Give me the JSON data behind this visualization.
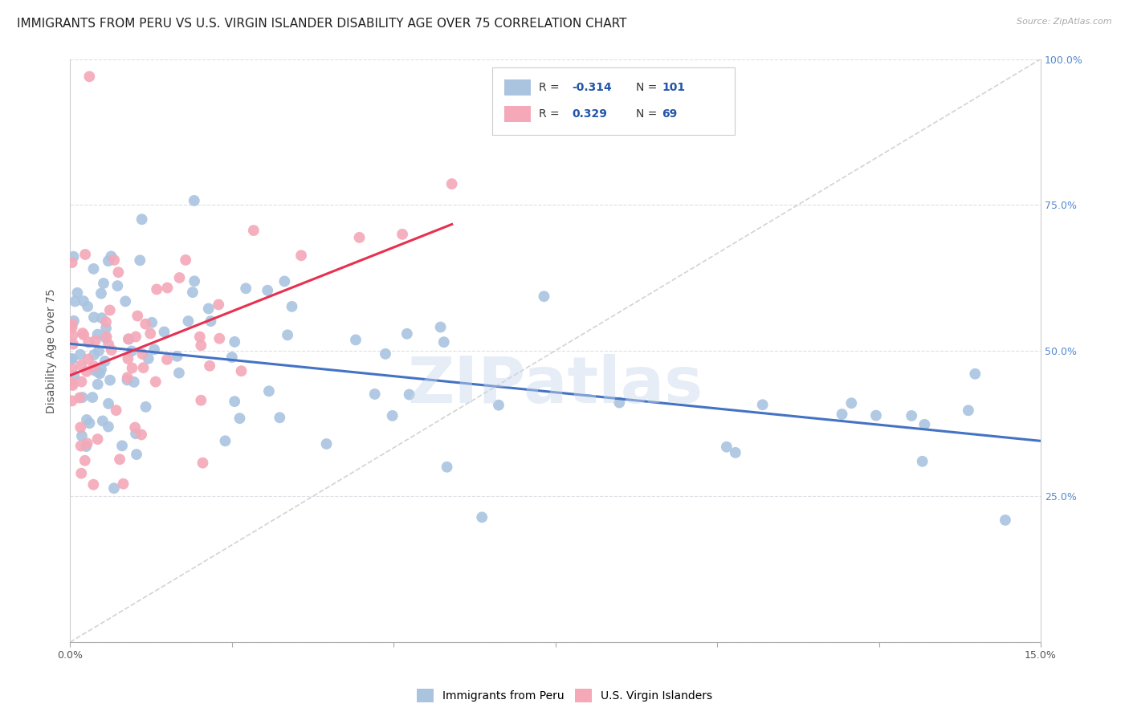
{
  "title": "IMMIGRANTS FROM PERU VS U.S. VIRGIN ISLANDER DISABILITY AGE OVER 75 CORRELATION CHART",
  "source": "Source: ZipAtlas.com",
  "ylabel": "Disability Age Over 75",
  "xlim": [
    0.0,
    0.15
  ],
  "ylim": [
    0.0,
    1.0
  ],
  "legend_r_blue": "-0.314",
  "legend_n_blue": "101",
  "legend_r_pink": "0.329",
  "legend_n_pink": "69",
  "blue_color": "#aac4e0",
  "pink_color": "#f4a8b8",
  "trend_blue": "#4472c4",
  "trend_pink": "#e83050",
  "diagonal_color": "#c8c8c8",
  "watermark": "ZIPatlas",
  "title_fontsize": 11,
  "axis_fontsize": 10,
  "tick_fontsize": 9,
  "right_tick_color": "#5588cc"
}
